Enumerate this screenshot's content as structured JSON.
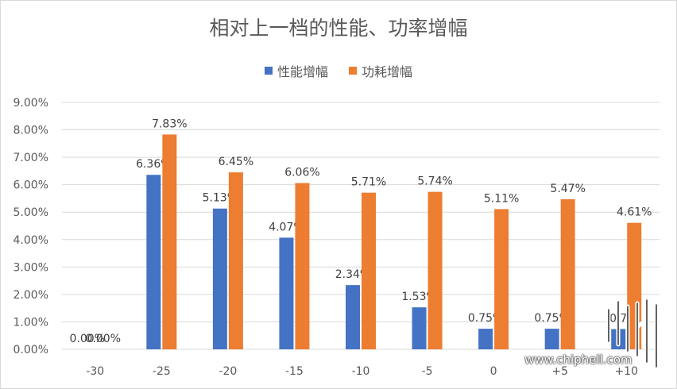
{
  "chart_data": {
    "type": "bar",
    "title": "相对上一档的性能、功率增幅",
    "categories": [
      "-30",
      "-25",
      "-20",
      "-15",
      "-10",
      "-5",
      "0",
      "+5",
      "+10"
    ],
    "series": [
      {
        "name": "性能增幅",
        "color": "#4472c4",
        "values": [
          0.0,
          6.36,
          5.13,
          4.07,
          2.34,
          1.53,
          0.75,
          0.75,
          0.74
        ],
        "labels": [
          "0.00%",
          "6.36%",
          "5.13%",
          "4.07%",
          "2.34%",
          "1.53%",
          "0.75%",
          "0.75%",
          "0.7"
        ]
      },
      {
        "name": "功耗增幅",
        "color": "#ed7d31",
        "values": [
          0.0,
          7.83,
          6.45,
          6.06,
          5.71,
          5.74,
          5.11,
          5.47,
          4.61
        ],
        "labels": [
          "0.00%",
          "7.83%",
          "6.45%",
          "6.06%",
          "5.71%",
          "5.74%",
          "5.11%",
          "5.47%",
          "4.61%"
        ]
      }
    ],
    "yticks": [
      "0.00%",
      "1.00%",
      "2.00%",
      "3.00%",
      "4.00%",
      "5.00%",
      "6.00%",
      "7.00%",
      "8.00%",
      "9.00%"
    ],
    "ylim": [
      0,
      9
    ],
    "grid": true,
    "legend_position": "top"
  },
  "watermark": {
    "text": "www.chiphell.com",
    "logo_text": "chiphell",
    "logo_icon": "chiphell-logo"
  }
}
